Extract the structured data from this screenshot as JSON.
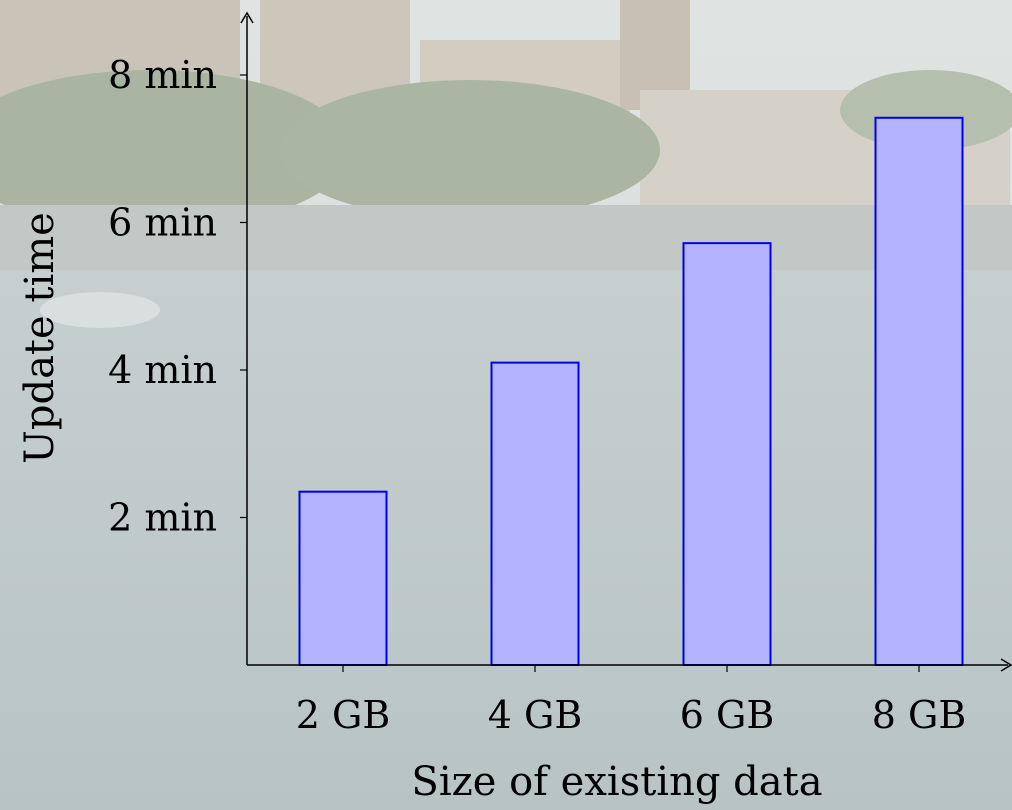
{
  "chart_data": {
    "type": "bar",
    "categories": [
      "2 GB",
      "4 GB",
      "6 GB",
      "8 GB"
    ],
    "values": [
      2.35,
      4.1,
      5.72,
      7.42
    ],
    "xlabel": "Size of existing data",
    "ylabel": "Update time",
    "ylim": [
      0,
      8.8
    ],
    "yticks": [
      {
        "value": 2,
        "label": "2 min"
      },
      {
        "value": 4,
        "label": "4 min"
      },
      {
        "value": 6,
        "label": "6 min"
      },
      {
        "value": 8,
        "label": "8 min"
      }
    ],
    "grid": false,
    "colors": {
      "bar_fill": "#b3b3ff",
      "bar_stroke": "#0000e6",
      "axis": "#000000"
    }
  }
}
